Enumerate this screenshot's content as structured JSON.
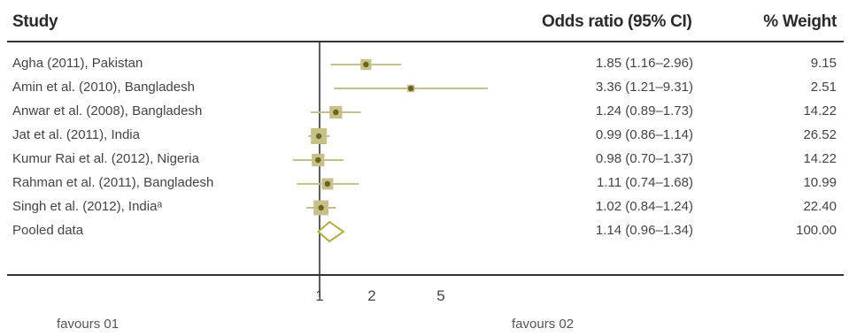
{
  "headers": {
    "study": "Study",
    "or": "Odds ratio (95% CI)",
    "weight": "% Weight"
  },
  "colors": {
    "marker": "#c8c08a",
    "line": "#c8c08a",
    "dot": "#6b6320",
    "axis": "#333333"
  },
  "chart_data": {
    "type": "forest",
    "x_scale": "log",
    "xticks": [
      "1",
      "2",
      "5"
    ],
    "reference_line": 1,
    "favours_left": "favours 01",
    "favours_right": "favours 02",
    "studies": [
      {
        "label": "Agha (2011), Pakistan",
        "or": 1.85,
        "lower": 1.16,
        "upper": 2.96,
        "or_text": "1.85 (1.16–2.96)",
        "weight": 9.15,
        "weight_text": "9.15"
      },
      {
        "label": "Amin et al. (2010), Bangladesh",
        "or": 3.36,
        "lower": 1.21,
        "upper": 9.31,
        "or_text": "3.36 (1.21–9.31)",
        "weight": 2.51,
        "weight_text": "2.51"
      },
      {
        "label": "Anwar et al. (2008), Bangladesh",
        "or": 1.24,
        "lower": 0.89,
        "upper": 1.73,
        "or_text": "1.24 (0.89–1.73)",
        "weight": 14.22,
        "weight_text": "14.22"
      },
      {
        "label": "Jat et al. (2011), India",
        "or": 0.99,
        "lower": 0.86,
        "upper": 1.14,
        "or_text": "0.99 (0.86–1.14)",
        "weight": 26.52,
        "weight_text": "26.52"
      },
      {
        "label": "Kumur Rai et al. (2012), Nigeria",
        "or": 0.98,
        "lower": 0.7,
        "upper": 1.37,
        "or_text": "0.98 (0.70–1.37)",
        "weight": 14.22,
        "weight_text": "14.22"
      },
      {
        "label": "Rahman et al. (2011), Bangladesh",
        "or": 1.11,
        "lower": 0.74,
        "upper": 1.68,
        "or_text": "1.11 (0.74–1.68)",
        "weight": 10.99,
        "weight_text": "10.99"
      },
      {
        "label": "Singh et al. (2012), Indiaᵃ",
        "or": 1.02,
        "lower": 0.84,
        "upper": 1.24,
        "or_text": "1.02 (0.84–1.24)",
        "weight": 22.4,
        "weight_text": "22.40"
      }
    ],
    "pooled": {
      "label": "Pooled data",
      "or": 1.14,
      "lower": 0.96,
      "upper": 1.34,
      "or_text": "1.14 (0.96–1.34)",
      "weight_text": "100.00"
    }
  }
}
